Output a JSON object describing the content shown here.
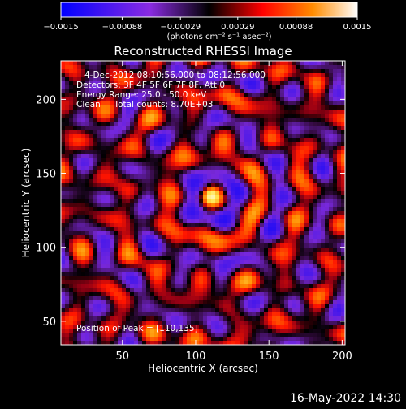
{
  "chart_data": {
    "type": "heatmap",
    "title": "Reconstructed RHESSI Image",
    "xlabel": "Heliocentric X (arcsec)",
    "ylabel": "Heliocentric Y (arcsec)",
    "xlim": [
      8,
      202
    ],
    "ylim": [
      34,
      226
    ],
    "x_ticks": [
      50,
      100,
      150,
      200
    ],
    "y_ticks": [
      50,
      100,
      150,
      200
    ],
    "grid": false,
    "colorbar": {
      "location": "top",
      "vmin": -0.0015,
      "vmax": 0.0015,
      "tick_values": [
        -0.0015,
        -0.00088,
        -0.00029,
        0.00029,
        0.00088,
        0.0015
      ],
      "tick_labels": [
        "−0.0015",
        "−0.00088",
        "−0.00029",
        "0.00029",
        "0.00088",
        "0.0015"
      ],
      "label": "(photons cm⁻² s⁻¹ asec⁻²)",
      "colors": [
        "#0000ff",
        "#8a2be2",
        "#000000",
        "#ff0000",
        "#ff8c00",
        "#ffffff"
      ]
    },
    "annotations": [
      "4-Dec-2012 08:10:56.000 to 08:12:56.000",
      "Detectors: 3F 4F 5F 6F 7F 8F, Att 0",
      "Energy Range: 25.0 - 50.0 keV",
      "Clean     Total counts: 8.70E+03"
    ],
    "peak_label": "Position of Peak = [110,135]",
    "peak": [
      110,
      135
    ]
  },
  "footer": {
    "timestamp": "16-May-2022 14:30"
  }
}
